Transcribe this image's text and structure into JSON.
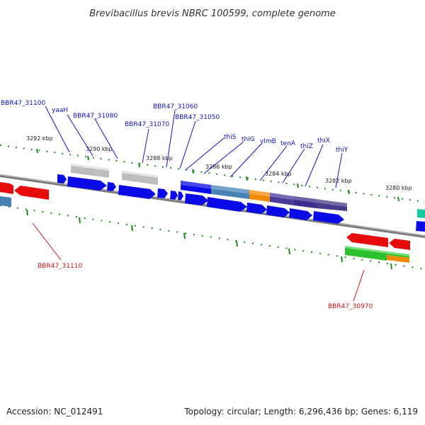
{
  "title": "Brevibacillus brevis NBRC 100599, complete genome",
  "footer": {
    "accession": "Accession: NC_012491",
    "summary": "Topology: circular; Length: 6,296,436 bp; Genes: 6,119"
  },
  "colors": {
    "forward_gene": "#0a0ae6",
    "reverse_gene": "#e60a0a",
    "pseudo_gene": "#bdbdbd",
    "backbone": "#888888",
    "tick": "#1a8a1a",
    "label_forward": "#1010c8",
    "label_reverse": "#d01010"
  },
  "kbp_labels": [
    "3292 kbp",
    "3290 kbp",
    "3288 kbp",
    "3286 kbp",
    "3284 kbp",
    "3282 kbp",
    "3280 kbp"
  ],
  "gene_labels": [
    "BBR47_31100",
    "yaaH",
    "BBR47_31080",
    "BBR47_31070",
    "BBR47_31060",
    "BBR47_31050",
    "thiS",
    "thiG",
    "ylmB",
    "tenA",
    "thiZ",
    "thiX",
    "thiY",
    "BBR47_31110",
    "BBR47_30970"
  ]
}
